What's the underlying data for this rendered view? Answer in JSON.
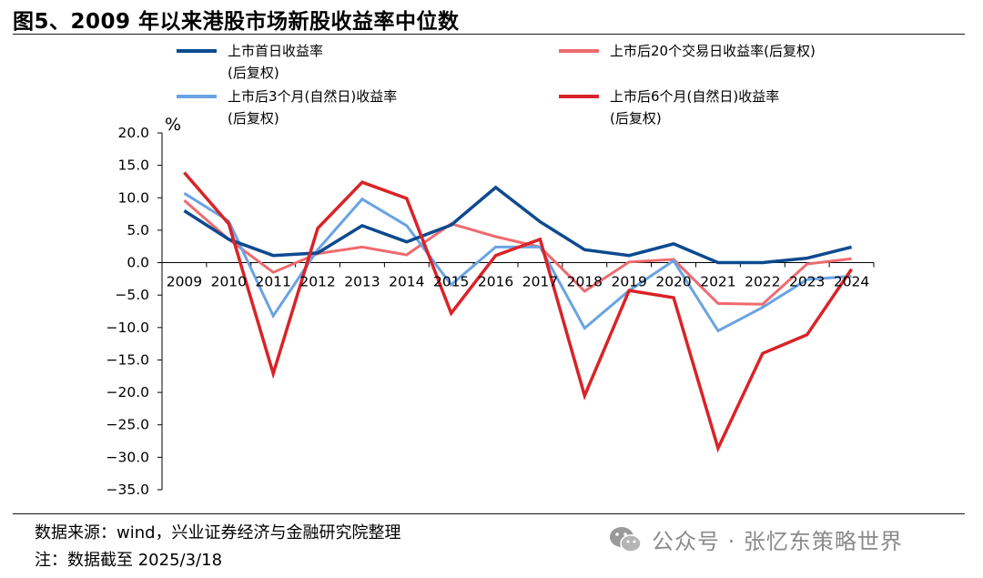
{
  "title": "图5、2009 年以来港股市场新股收益率中位数",
  "footer": {
    "source": "数据来源：wind，兴业证券经济与金融研究院整理",
    "note": "注：数据截至 2025/3/18"
  },
  "watermark": "公众号 · 张忆东策略世界",
  "chart_data": {
    "type": "line",
    "ylabel": "%",
    "ylim": [
      -35,
      20
    ],
    "yticks": [
      "20.0",
      "15.0",
      "10.0",
      "5.0",
      "0.0",
      "−5.0",
      "−10.0",
      "−15.0",
      "−20.0",
      "−25.0",
      "−30.0",
      "−35.0"
    ],
    "ytick_values": [
      20,
      15,
      10,
      5,
      0,
      -5,
      -10,
      -15,
      -20,
      -25,
      -30,
      -35
    ],
    "categories": [
      "2009",
      "2010",
      "2011",
      "2012",
      "2013",
      "2014",
      "2015",
      "2016",
      "2017",
      "2018",
      "2019",
      "2020",
      "2021",
      "2022",
      "2023",
      "2024"
    ],
    "legend_position": "top",
    "series": [
      {
        "name": "上市首日收益率",
        "name2": "(后复权)",
        "color": "#0d4a8f",
        "values": [
          8.0,
          3.6,
          1.1,
          1.5,
          5.7,
          3.2,
          5.8,
          11.6,
          6.3,
          2.0,
          1.1,
          2.9,
          0.0,
          0.0,
          0.7,
          2.4
        ]
      },
      {
        "name": "上市后20个交易日收益率(后复权)",
        "name2": "",
        "color": "#ee6b6e",
        "values": [
          9.6,
          3.6,
          -1.5,
          1.4,
          2.4,
          1.2,
          6.0,
          4.0,
          2.4,
          -4.4,
          0.1,
          0.5,
          -6.3,
          -6.4,
          -0.2,
          0.6
        ]
      },
      {
        "name": "上市后3个月(自然日)收益率",
        "name2": "(后复权)",
        "color": "#6aa3e3",
        "values": [
          10.7,
          6.4,
          -8.2,
          2.0,
          9.8,
          5.7,
          -3.4,
          2.4,
          2.4,
          -10.1,
          -4.3,
          0.3,
          -10.5,
          -6.9,
          -2.6,
          -2.1
        ]
      },
      {
        "name": "上市后6个月(自然日)收益率",
        "name2": "(后复权)",
        "color": "#d92328",
        "values": [
          13.9,
          6.0,
          -17.1,
          5.3,
          12.4,
          9.9,
          -7.8,
          1.1,
          3.6,
          -20.5,
          -4.3,
          -5.4,
          -28.6,
          -14.0,
          -11.1,
          -1.0
        ]
      }
    ]
  }
}
